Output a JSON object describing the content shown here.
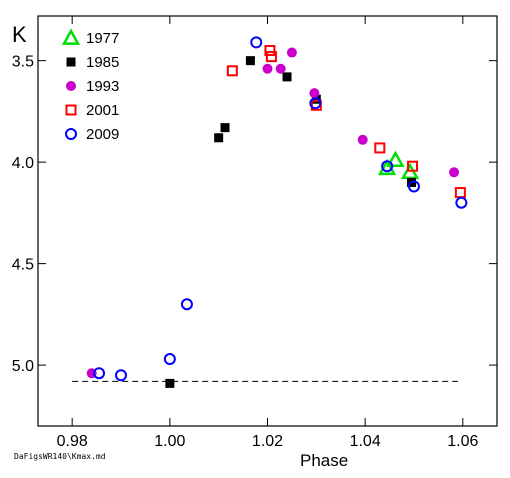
{
  "chart_data": {
    "type": "scatter",
    "title": "",
    "ylabel": "K",
    "xlabel": "Phase",
    "source_note": "DaFigsWR140\\Kmax.md",
    "xlim": [
      0.973,
      1.067
    ],
    "ylim": [
      3.28,
      5.3
    ],
    "y_inverted": true,
    "x_ticks": [
      0.98,
      1.0,
      1.02,
      1.04,
      1.06
    ],
    "x_tick_labels": [
      "0.98",
      "1.00",
      "1.02",
      "1.04",
      "1.06"
    ],
    "y_ticks": [
      3.5,
      4.0,
      4.5,
      5.0
    ],
    "y_tick_labels": [
      "3.5",
      "4.0",
      "4.5",
      "5.0"
    ],
    "legend_position": "top-left",
    "grid": false,
    "reference_line": {
      "y": 5.08,
      "x_range": [
        0.98,
        1.059
      ],
      "style": "dashed"
    },
    "series": [
      {
        "name": "1977",
        "marker": "open-triangle",
        "color": "#00e000",
        "points": [
          [
            1.0445,
            4.03
          ],
          [
            1.0462,
            3.99
          ],
          [
            1.0492,
            4.05
          ]
        ]
      },
      {
        "name": "1985",
        "marker": "filled-square",
        "color": "#000000",
        "points": [
          [
            1.0,
            5.09
          ],
          [
            1.01,
            3.88
          ],
          [
            1.0113,
            3.83
          ],
          [
            1.0165,
            3.5
          ],
          [
            1.024,
            3.58
          ],
          [
            1.03,
            3.69
          ],
          [
            1.0495,
            4.1
          ]
        ]
      },
      {
        "name": "1993",
        "marker": "filled-circle",
        "color": "#cc00cc",
        "points": [
          [
            0.984,
            5.04
          ],
          [
            1.02,
            3.54
          ],
          [
            1.0227,
            3.54
          ],
          [
            1.025,
            3.46
          ],
          [
            1.0296,
            3.66
          ],
          [
            1.0395,
            3.89
          ],
          [
            1.0582,
            4.05
          ]
        ]
      },
      {
        "name": "2001",
        "marker": "open-square",
        "color": "#ff0000",
        "points": [
          [
            1.0128,
            3.55
          ],
          [
            1.0205,
            3.45
          ],
          [
            1.0208,
            3.48
          ],
          [
            1.03,
            3.72
          ],
          [
            1.043,
            3.93
          ],
          [
            1.0497,
            4.02
          ],
          [
            1.0595,
            4.15
          ]
        ]
      },
      {
        "name": "2009",
        "marker": "open-circle",
        "color": "#0000ff",
        "points": [
          [
            0.9855,
            5.04
          ],
          [
            0.99,
            5.05
          ],
          [
            1.0,
            4.97
          ],
          [
            1.0035,
            4.7
          ],
          [
            1.0177,
            3.41
          ],
          [
            1.0298,
            3.71
          ],
          [
            1.0445,
            4.02
          ],
          [
            1.05,
            4.12
          ],
          [
            1.0597,
            4.2
          ]
        ]
      }
    ]
  }
}
